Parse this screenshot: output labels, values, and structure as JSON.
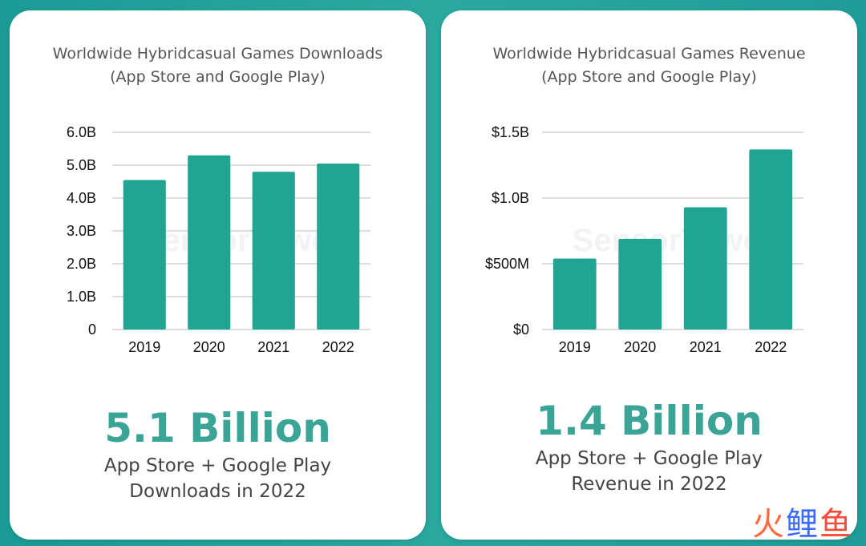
{
  "charts": [
    {
      "title_line1": "Worldwide Hybridcasual Games Downloads",
      "title_line2": "(App Store and Google Play)",
      "stat_value": "5.1 Billion",
      "stat_line1": "App Store + Google Play",
      "stat_line2": "Downloads in 2022",
      "watermark": "SensorTower"
    },
    {
      "title_line1": "Worldwide Hybridcasual Games Revenue",
      "title_line2": "(App Store and Google Play)",
      "stat_value": "1.4 Billion",
      "stat_line1": "App Store + Google Play",
      "stat_line2": "Revenue in 2022",
      "watermark": "SensorTower"
    }
  ],
  "chart_data": [
    {
      "type": "bar",
      "title": "Worldwide Hybridcasual Games Downloads (App Store and Google Play)",
      "categories": [
        "2019",
        "2020",
        "2021",
        "2022"
      ],
      "values": [
        4.55,
        5.3,
        4.8,
        5.05
      ],
      "unit": "billion downloads",
      "ylim": [
        0,
        6
      ],
      "yticks": [
        0,
        1,
        2,
        3,
        4,
        5,
        6
      ],
      "ytick_labels": [
        "0",
        "1.0B",
        "2.0B",
        "3.0B",
        "4.0B",
        "5.0B",
        "6.0B"
      ],
      "xlabel": "",
      "ylabel": "",
      "grid": true
    },
    {
      "type": "bar",
      "title": "Worldwide Hybridcasual Games Revenue (App Store and Google Play)",
      "categories": [
        "2019",
        "2020",
        "2021",
        "2022"
      ],
      "values": [
        0.54,
        0.69,
        0.93,
        1.37
      ],
      "unit": "billion USD",
      "ylim": [
        0,
        1.5
      ],
      "yticks": [
        0,
        0.5,
        1.0,
        1.5
      ],
      "ytick_labels": [
        "$0",
        "$500M",
        "$1.0B",
        "$1.5B"
      ],
      "xlabel": "",
      "ylabel": "",
      "grid": true
    }
  ],
  "logo_text": {
    "char1": "火",
    "char2": "鲤",
    "char3": "鱼"
  }
}
